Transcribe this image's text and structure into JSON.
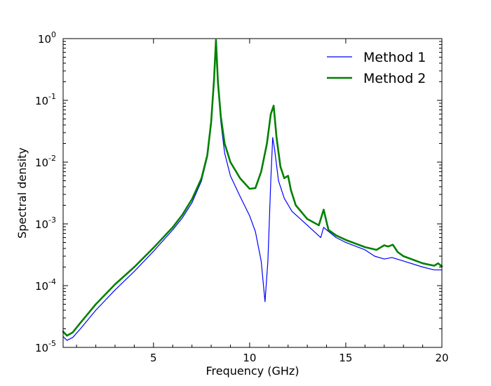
{
  "chart_data": {
    "type": "line",
    "xlabel": "Frequency (GHz)",
    "ylabel": "Spectral density",
    "xlim": [
      0.3,
      20
    ],
    "ylim": [
      1e-05,
      1
    ],
    "yscale": "log",
    "grid": false,
    "legend_position": "top-right",
    "x_ticks": [
      5,
      10,
      15,
      20
    ],
    "y_ticks": [
      {
        "value": 1e-05,
        "base": "10",
        "exp": "-5"
      },
      {
        "value": 0.0001,
        "base": "10",
        "exp": "-4"
      },
      {
        "value": 0.001,
        "base": "10",
        "exp": "-3"
      },
      {
        "value": 0.01,
        "base": "10",
        "exp": "-2"
      },
      {
        "value": 0.1,
        "base": "10",
        "exp": "-1"
      },
      {
        "value": 1,
        "base": "10",
        "exp": "0"
      }
    ],
    "series": [
      {
        "name": "Method 1",
        "color": "#0000ff",
        "linewidth": "thin",
        "x": [
          0.3,
          0.5,
          0.8,
          1.2,
          2,
          3,
          4,
          5,
          6,
          6.5,
          7,
          7.5,
          7.8,
          8.0,
          8.15,
          8.25,
          8.35,
          8.5,
          8.7,
          9.0,
          9.5,
          10.0,
          10.3,
          10.6,
          10.8,
          10.95,
          11.1,
          11.2,
          11.3,
          11.5,
          11.8,
          12.2,
          13.0,
          13.7,
          13.85,
          14.0,
          14.5,
          15.0,
          16.0,
          16.5,
          17.0,
          17.4,
          18.0,
          19.0,
          19.6,
          19.8,
          20.0
        ],
        "y": [
          1.5e-05,
          1.3e-05,
          1.45e-05,
          2e-05,
          4e-05,
          8.5e-05,
          0.00017,
          0.00036,
          0.0008,
          0.00125,
          0.0022,
          0.005,
          0.012,
          0.04,
          0.2,
          0.9,
          0.18,
          0.045,
          0.014,
          0.006,
          0.0028,
          0.00135,
          0.00075,
          0.00025,
          5.5e-05,
          0.00025,
          0.005,
          0.025,
          0.016,
          0.005,
          0.0026,
          0.0016,
          0.00095,
          0.0006,
          0.00088,
          0.0008,
          0.0006,
          0.0005,
          0.00038,
          0.0003,
          0.00027,
          0.000285,
          0.00025,
          0.0002,
          0.00018,
          0.00018,
          0.00018
        ]
      },
      {
        "name": "Method 2",
        "color": "#008000",
        "linewidth": "thick",
        "x": [
          0.3,
          0.5,
          0.8,
          1.2,
          2,
          3,
          4,
          5,
          6,
          6.5,
          7,
          7.5,
          7.8,
          8.0,
          8.15,
          8.25,
          8.35,
          8.5,
          8.7,
          9.0,
          9.5,
          10.0,
          10.3,
          10.6,
          10.9,
          11.1,
          11.25,
          11.4,
          11.6,
          11.8,
          12.0,
          12.15,
          12.4,
          13.0,
          13.6,
          13.85,
          14.1,
          14.5,
          15.0,
          16.0,
          16.6,
          17.0,
          17.2,
          17.45,
          17.7,
          18.0,
          19.0,
          19.6,
          19.8,
          20.0
        ],
        "y": [
          1.8e-05,
          1.55e-05,
          1.75e-05,
          2.5e-05,
          5e-05,
          0.000105,
          0.0002,
          0.00041,
          0.00088,
          0.0014,
          0.0025,
          0.0055,
          0.013,
          0.045,
          0.22,
          0.95,
          0.2,
          0.055,
          0.02,
          0.01,
          0.0055,
          0.0037,
          0.0038,
          0.007,
          0.02,
          0.06,
          0.082,
          0.025,
          0.0085,
          0.0055,
          0.006,
          0.0035,
          0.002,
          0.0012,
          0.00095,
          0.0017,
          0.0008,
          0.00065,
          0.00055,
          0.00042,
          0.00038,
          0.00045,
          0.00043,
          0.00046,
          0.00035,
          0.0003,
          0.00023,
          0.00021,
          0.00023,
          0.000205
        ]
      }
    ]
  }
}
